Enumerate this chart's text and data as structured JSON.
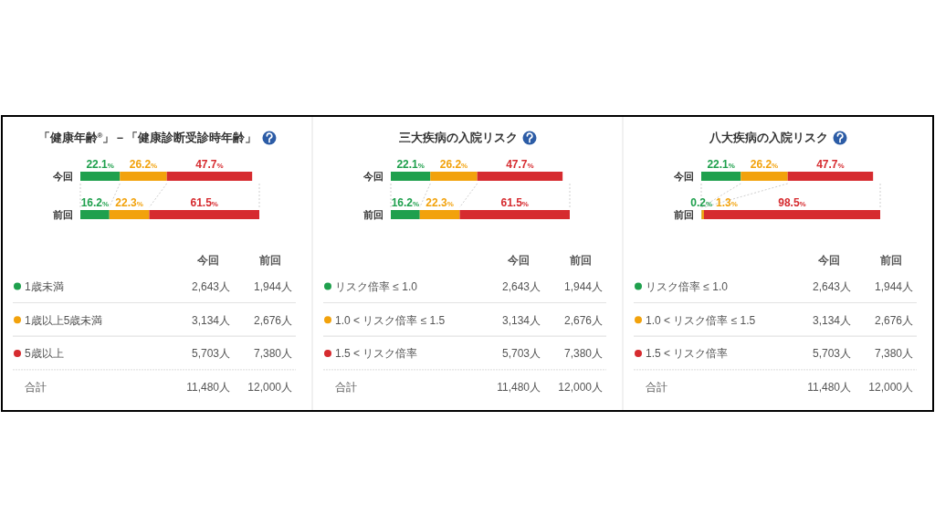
{
  "chart_data": [
    {
      "type": "bar",
      "orientation": "horizontal",
      "stacked": true,
      "title": "「健康年齢$^{®}$」－「健康診断受診時年齢」",
      "categories": [
        "今回",
        "前回"
      ],
      "xlim": [
        0,
        100
      ],
      "tick_labels": "y",
      "legend": "bottom",
      "series": [
        {
          "name": "1歳未満",
          "color": "#1fa04d",
          "values": [
            22.1,
            16.2
          ],
          "value_labels": [
            "22.1%",
            "16.2%"
          ]
        },
        {
          "name": "1歳以上5歳未満",
          "color": "#f2a20c",
          "values": [
            26.2,
            22.3
          ],
          "value_labels": [
            "26.2%",
            "22.3%"
          ]
        },
        {
          "name": "5歳以上",
          "color": "#d62b2f",
          "values": [
            47.7,
            61.5
          ],
          "value_labels": [
            "47.7%",
            "61.5%"
          ]
        }
      ],
      "annotations": [
        "2,643人",
        "1,944人",
        "3,134人",
        "2,676人",
        "5,703人",
        "7,380人",
        "合計",
        "11,480人",
        "12,000人"
      ]
    },
    {
      "type": "bar",
      "orientation": "horizontal",
      "stacked": true,
      "title": "三大疾病の入院リスク",
      "categories": [
        "今回",
        "前回"
      ],
      "xlim": [
        0,
        100
      ],
      "tick_labels": "y",
      "legend": "bottom",
      "series": [
        {
          "name": "リスク倍率 ≤ 1.0",
          "color": "#1fa04d",
          "values": [
            22.1,
            16.2
          ],
          "value_labels": [
            "22.1%",
            "16.2%"
          ]
        },
        {
          "name": "1.0 < リスク倍率 ≤ 1.5",
          "color": "#f2a20c",
          "values": [
            26.2,
            22.3
          ],
          "value_labels": [
            "26.2%",
            "22.3%"
          ]
        },
        {
          "name": "1.5 < リスク倍率",
          "color": "#d62b2f",
          "values": [
            47.7,
            61.5
          ],
          "value_labels": [
            "47.7%",
            "61.5%"
          ]
        }
      ],
      "annotations": [
        "2,643人",
        "1,944人",
        "3,134人",
        "2,676人",
        "5,703人",
        "7,380人",
        "合計",
        "11,480人",
        "12,000人"
      ]
    },
    {
      "type": "bar",
      "orientation": "horizontal",
      "stacked": true,
      "title": "八大疾病の入院リスク",
      "categories": [
        "今回",
        "前回"
      ],
      "xlim": [
        0,
        100
      ],
      "tick_labels": "y",
      "legend": "bottom",
      "series": [
        {
          "name": "リスク倍率 ≤ 1.0",
          "color": "#1fa04d",
          "values": [
            22.1,
            0.2
          ],
          "value_labels": [
            "22.1%",
            "0.2%"
          ]
        },
        {
          "name": "1.0 < リスク倍率 ≤ 1.5",
          "color": "#f2a20c",
          "values": [
            26.2,
            1.3
          ],
          "value_labels": [
            "26.2%",
            "1.3%"
          ]
        },
        {
          "name": "1.5 < リスク倍率",
          "color": "#d62b2f",
          "values": [
            47.7,
            98.5
          ],
          "value_labels": [
            "47.7%",
            "98.5%"
          ]
        }
      ],
      "annotations": [
        "2,643人",
        "1,944人",
        "3,134人",
        "2,676人",
        "5,703人",
        "7,380人",
        "合計",
        "11,480人",
        "12,000人"
      ]
    }
  ]
}
